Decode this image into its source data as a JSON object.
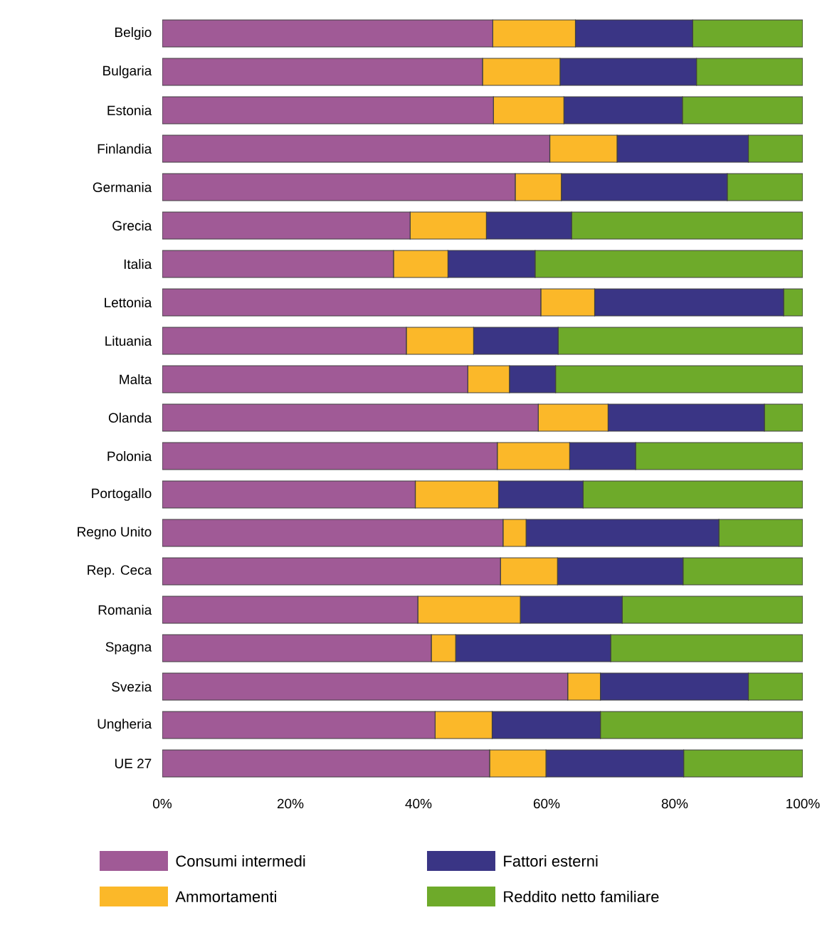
{
  "chart_data": {
    "type": "bar",
    "orientation": "horizontal",
    "stacked": true,
    "categories": [
      "Belgio",
      "Bulgaria",
      "Estonia",
      "Finlandia",
      "Germania",
      "Grecia",
      "Italia",
      "Lettonia",
      "Lituania",
      "Malta",
      "Olanda",
      "Polonia",
      "Portogallo",
      "Regno Unito",
      "Rep. Ceca",
      "Romania",
      "Spagna",
      "Svezia",
      "Ungheria",
      "UE 27"
    ],
    "series": [
      {
        "name": "Consumi intermedi",
        "color": "#a05a96",
        "values": [
          51.6,
          50.0,
          51.7,
          60.5,
          55.1,
          38.7,
          36.1,
          59.1,
          38.1,
          47.7,
          58.7,
          52.3,
          39.5,
          53.2,
          52.8,
          39.9,
          42.0,
          63.3,
          42.6,
          51.1
        ]
      },
      {
        "name": "Ammortamenti",
        "color": "#fbb829",
        "values": [
          12.9,
          12.1,
          11.0,
          10.5,
          7.2,
          11.9,
          8.5,
          8.4,
          10.5,
          6.5,
          10.9,
          11.3,
          13.0,
          3.6,
          8.9,
          16.0,
          3.8,
          5.1,
          8.9,
          8.8
        ]
      },
      {
        "name": "Fattori esterni",
        "color": "#3a3585",
        "values": [
          18.3,
          21.3,
          18.5,
          20.5,
          25.9,
          13.3,
          13.6,
          29.5,
          13.2,
          7.2,
          24.4,
          10.3,
          13.2,
          30.1,
          19.6,
          15.9,
          24.2,
          23.1,
          16.9,
          21.5
        ]
      },
      {
        "name": "Reddito netto familiare",
        "color": "#6eaa2a",
        "values": [
          17.2,
          16.6,
          18.8,
          8.5,
          11.8,
          36.1,
          41.8,
          3.0,
          38.2,
          38.6,
          6.0,
          26.1,
          34.3,
          13.1,
          18.7,
          28.2,
          30.0,
          8.5,
          31.6,
          18.6
        ]
      }
    ],
    "xlim": [
      0,
      100
    ],
    "xticks": [
      {
        "value": 0,
        "label": "0%"
      },
      {
        "value": 20,
        "label": "20%"
      },
      {
        "value": 40,
        "label": "40%"
      },
      {
        "value": 60,
        "label": "60%"
      },
      {
        "value": 80,
        "label": "80%"
      },
      {
        "value": 100,
        "label": "100%"
      }
    ],
    "legend": "bottom"
  }
}
